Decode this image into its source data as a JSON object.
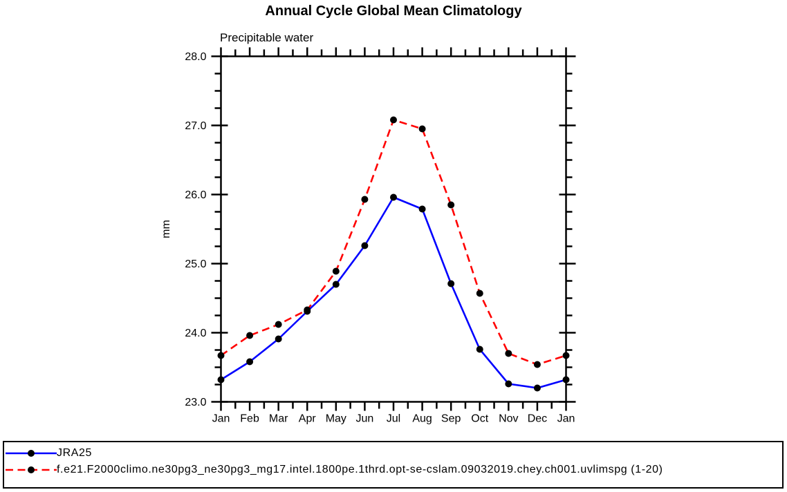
{
  "chart_data": {
    "type": "line",
    "title": "Annual Cycle Global Mean Climatology",
    "subtitle": "Precipitable water",
    "ylabel": "mm",
    "x_categories": [
      "Jan",
      "Feb",
      "Mar",
      "Apr",
      "May",
      "Jun",
      "Jul",
      "Aug",
      "Sep",
      "Oct",
      "Nov",
      "Dec",
      "Jan"
    ],
    "ylim": [
      23.0,
      28.0
    ],
    "ytick_major": [
      23.0,
      24.0,
      25.0,
      26.0,
      27.0,
      28.0
    ],
    "ytick_minor_step": 0.25,
    "xtick_minor_step": 0.5,
    "grid": false,
    "legend_position": "bottom-box",
    "frame_color": "#000000",
    "background_color": "#ffffff",
    "series": [
      {
        "name": "JRA25",
        "color": "#0000ff",
        "line_style": "solid",
        "marker": "filled-circle",
        "marker_color": "#000000",
        "values": [
          23.32,
          23.58,
          23.91,
          24.31,
          24.7,
          25.26,
          25.96,
          25.79,
          24.71,
          23.76,
          23.26,
          23.2,
          23.32
        ]
      },
      {
        "name": "f.e21.F2000climo.ne30pg3_ne30pg3_mg17.intel.1800pe.1thrd.opt-se-cslam.09032019.chey.ch001.uvlimspg (1-20)",
        "color": "#ff0000",
        "line_style": "dashed",
        "marker": "filled-circle",
        "marker_color": "#000000",
        "values": [
          23.67,
          23.96,
          24.12,
          24.33,
          24.89,
          25.93,
          27.08,
          26.95,
          25.85,
          24.57,
          23.7,
          23.54,
          23.67
        ]
      }
    ]
  }
}
